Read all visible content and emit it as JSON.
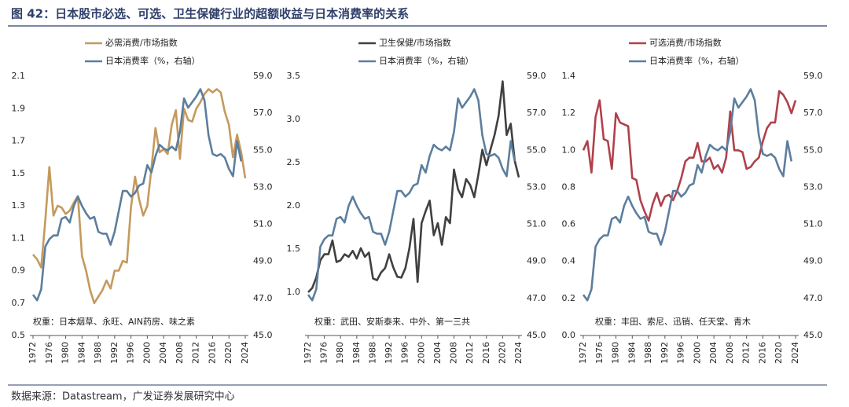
{
  "title": "图 42：日本股市必选、可选、卫生保健行业的超额收益与日本消费率的关系",
  "source": "数据来源：Datastream，广发证券发展研究中心",
  "chart_data": [
    {
      "type": "line",
      "x": [
        1972,
        1973,
        1974,
        1975,
        1976,
        1977,
        1978,
        1979,
        1980,
        1981,
        1982,
        1983,
        1984,
        1985,
        1986,
        1987,
        1988,
        1989,
        1990,
        1991,
        1992,
        1993,
        1994,
        1995,
        1996,
        1997,
        1998,
        1999,
        2000,
        2001,
        2002,
        2003,
        2004,
        2005,
        2006,
        2007,
        2008,
        2009,
        2010,
        2011,
        2012,
        2013,
        2014,
        2015,
        2016,
        2017,
        2018,
        2019,
        2020,
        2021,
        2022,
        2023,
        2024
      ],
      "xticks": [
        1972,
        1976,
        1980,
        1984,
        1988,
        1992,
        1996,
        2000,
        2004,
        2008,
        2012,
        2016,
        2020,
        2024
      ],
      "ylim": [
        0.5,
        2.1
      ],
      "yticks": [
        0.5,
        0.7,
        0.9,
        1.1,
        1.3,
        1.5,
        1.7,
        1.9,
        2.1
      ],
      "y2lim": [
        45,
        59
      ],
      "y2ticks": [
        {
          "value": 45,
          "label": "45.0"
        },
        {
          "value": 47,
          "label": "47.0"
        },
        {
          "value": 49,
          "label": "49.0"
        },
        {
          "value": 51,
          "label": "51.0"
        },
        {
          "value": 53,
          "label": "53.0"
        },
        {
          "value": 55,
          "label": "55.0"
        },
        {
          "value": 57,
          "label": "57.0"
        },
        {
          "value": 59,
          "label": "59.0"
        }
      ],
      "series": [
        {
          "name": "必需消费/市场指数",
          "color": "#c49a5c",
          "values": [
            1.0,
            0.97,
            0.92,
            1.21,
            1.54,
            1.24,
            1.3,
            1.29,
            1.25,
            1.27,
            1.32,
            1.36,
            0.99,
            0.9,
            0.78,
            0.7,
            0.74,
            0.78,
            0.84,
            0.79,
            0.9,
            0.9,
            0.96,
            0.95,
            1.29,
            1.48,
            1.34,
            1.24,
            1.3,
            1.53,
            1.78,
            1.63,
            1.65,
            1.62,
            1.8,
            1.89,
            1.59,
            1.9,
            1.83,
            1.82,
            1.9,
            1.94,
            1.99,
            2.02,
            2.0,
            2.02,
            2.0,
            1.88,
            1.8,
            1.6,
            1.74,
            1.63,
            1.47
          ]
        },
        {
          "name": "日本消费率（%，右轴）",
          "color": "#5c7e9e",
          "axis": "y2",
          "values": [
            47.2,
            46.9,
            47.5,
            49.8,
            50.2,
            50.4,
            50.4,
            51.3,
            51.4,
            51.1,
            52.0,
            52.5,
            52.0,
            51.6,
            51.3,
            51.4,
            50.6,
            50.5,
            50.5,
            49.9,
            50.6,
            51.7,
            52.8,
            52.8,
            52.5,
            52.7,
            53.1,
            53.2,
            54.2,
            53.8,
            54.7,
            55.3,
            55.1,
            55.0,
            55.2,
            55.0,
            56.0,
            57.8,
            57.3,
            57.6,
            57.9,
            58.3,
            57.7,
            55.8,
            54.8,
            54.7,
            54.8,
            54.6,
            54.0,
            53.6,
            55.5,
            54.4,
            null
          ]
        }
      ],
      "annotation": "权重：日本烟草、永旺、AIN药房、味之素"
    },
    {
      "type": "line",
      "x": [
        1972,
        1973,
        1974,
        1975,
        1976,
        1977,
        1978,
        1979,
        1980,
        1981,
        1982,
        1983,
        1984,
        1985,
        1986,
        1987,
        1988,
        1989,
        1990,
        1991,
        1992,
        1993,
        1994,
        1995,
        1996,
        1997,
        1998,
        1999,
        2000,
        2001,
        2002,
        2003,
        2004,
        2005,
        2006,
        2007,
        2008,
        2009,
        2010,
        2011,
        2012,
        2013,
        2014,
        2015,
        2016,
        2017,
        2018,
        2019,
        2020,
        2021,
        2022,
        2023,
        2024
      ],
      "xticks": [
        1972,
        1976,
        1980,
        1984,
        1988,
        1992,
        1996,
        2000,
        2004,
        2008,
        2012,
        2016,
        2020,
        2024
      ],
      "ylim": [
        0.5,
        3.5
      ],
      "yticks": [
        {
          "value": 1,
          "label": "1.0"
        },
        1.5,
        {
          "value": 2,
          "label": "2.0"
        },
        2.5,
        {
          "value": 3,
          "label": "3.0"
        },
        3.5
      ],
      "y2lim": [
        45,
        59
      ],
      "y2ticks": [
        {
          "value": 45,
          "label": "45.0"
        },
        {
          "value": 47,
          "label": "47.0"
        },
        {
          "value": 49,
          "label": "49.0"
        },
        {
          "value": 51,
          "label": "51.0"
        },
        {
          "value": 53,
          "label": "53.0"
        },
        {
          "value": 55,
          "label": "55.0"
        },
        {
          "value": 57,
          "label": "57.0"
        },
        {
          "value": 59,
          "label": "59.0"
        }
      ],
      "series": [
        {
          "name": "卫生保健/市场指数",
          "color": "#404040",
          "values": [
            1.0,
            1.05,
            1.17,
            1.37,
            1.44,
            1.44,
            1.6,
            1.35,
            1.37,
            1.44,
            1.41,
            1.48,
            1.39,
            1.51,
            1.41,
            1.46,
            1.16,
            1.14,
            1.23,
            1.28,
            1.44,
            1.29,
            1.18,
            1.17,
            1.28,
            1.51,
            1.85,
            1.12,
            1.8,
            1.94,
            2.06,
            1.66,
            1.8,
            1.55,
            1.87,
            1.8,
            2.42,
            2.19,
            2.1,
            2.31,
            2.24,
            2.1,
            2.36,
            2.65,
            2.47,
            2.65,
            2.82,
            3.04,
            3.44,
            2.82,
            2.95,
            2.52,
            2.33
          ]
        },
        {
          "name": "日本消费率（%，右轴）",
          "color": "#5c7e9e",
          "axis": "y2",
          "values": [
            47.2,
            46.9,
            47.5,
            49.8,
            50.2,
            50.4,
            50.4,
            51.3,
            51.4,
            51.1,
            52.0,
            52.5,
            52.0,
            51.6,
            51.3,
            51.4,
            50.6,
            50.5,
            50.5,
            49.9,
            50.6,
            51.7,
            52.8,
            52.8,
            52.5,
            52.7,
            53.1,
            53.2,
            54.2,
            53.8,
            54.7,
            55.3,
            55.1,
            55.0,
            55.2,
            55.0,
            56.0,
            57.8,
            57.3,
            57.6,
            57.9,
            58.3,
            57.7,
            55.8,
            54.8,
            54.7,
            54.8,
            54.6,
            54.0,
            53.6,
            55.5,
            54.4,
            null
          ]
        }
      ],
      "annotation": "权重：武田、安斯泰来、中外、第一三共"
    },
    {
      "type": "line",
      "x": [
        1972,
        1973,
        1974,
        1975,
        1976,
        1977,
        1978,
        1979,
        1980,
        1981,
        1982,
        1983,
        1984,
        1985,
        1986,
        1987,
        1988,
        1989,
        1990,
        1991,
        1992,
        1993,
        1994,
        1995,
        1996,
        1997,
        1998,
        1999,
        2000,
        2001,
        2002,
        2003,
        2004,
        2005,
        2006,
        2007,
        2008,
        2009,
        2010,
        2011,
        2012,
        2013,
        2014,
        2015,
        2016,
        2017,
        2018,
        2019,
        2020,
        2021,
        2022,
        2023,
        2024
      ],
      "xticks": [
        1972,
        1976,
        1980,
        1984,
        1988,
        1992,
        1996,
        2000,
        2004,
        2008,
        2012,
        2016,
        2020,
        2024
      ],
      "ylim": [
        0,
        1.4
      ],
      "yticks": [
        {
          "value": 0,
          "label": "0.0"
        },
        0.2,
        0.4,
        0.6,
        0.8,
        {
          "value": 1,
          "label": "1.0"
        },
        1.2,
        1.4
      ],
      "y2lim": [
        45,
        59
      ],
      "y2ticks": [
        {
          "value": 45,
          "label": "45.0"
        },
        {
          "value": 47,
          "label": "47.0"
        },
        {
          "value": 49,
          "label": "49.0"
        },
        {
          "value": 51,
          "label": "51.0"
        },
        {
          "value": 53,
          "label": "53.0"
        },
        {
          "value": 55,
          "label": "55.0"
        },
        {
          "value": 57,
          "label": "57.0"
        },
        {
          "value": 59,
          "label": "59.0"
        }
      ],
      "series": [
        {
          "name": "可选消费/市场指数",
          "color": "#b0414b",
          "values": [
            1.0,
            1.05,
            0.88,
            1.18,
            1.27,
            1.06,
            1.05,
            0.9,
            1.2,
            1.15,
            1.14,
            1.13,
            0.85,
            0.84,
            0.73,
            0.67,
            0.62,
            0.71,
            0.77,
            0.7,
            0.75,
            0.76,
            0.73,
            0.78,
            0.85,
            0.94,
            0.96,
            0.96,
            1.04,
            0.94,
            0.94,
            0.96,
            0.9,
            0.92,
            0.88,
            0.96,
            1.21,
            1.0,
            1.0,
            0.99,
            0.9,
            0.91,
            0.94,
            0.96,
            1.05,
            1.12,
            1.15,
            1.15,
            1.32,
            1.3,
            1.26,
            1.2,
            1.27
          ]
        },
        {
          "name": "日本消费率（%，右轴）",
          "color": "#5c7e9e",
          "axis": "y2",
          "values": [
            47.2,
            46.9,
            47.5,
            49.8,
            50.2,
            50.4,
            50.4,
            51.3,
            51.4,
            51.1,
            52.0,
            52.5,
            52.0,
            51.6,
            51.3,
            51.4,
            50.6,
            50.5,
            50.5,
            49.9,
            50.6,
            51.7,
            52.8,
            52.8,
            52.5,
            52.7,
            53.1,
            53.2,
            54.2,
            53.8,
            54.7,
            55.3,
            55.1,
            55.0,
            55.2,
            55.0,
            56.0,
            57.8,
            57.3,
            57.6,
            57.9,
            58.3,
            57.7,
            55.8,
            54.8,
            54.7,
            54.8,
            54.6,
            54.0,
            53.6,
            55.5,
            54.4,
            null
          ]
        }
      ],
      "annotation": "权重：丰田、索尼、迅销、任天堂、青木"
    }
  ]
}
